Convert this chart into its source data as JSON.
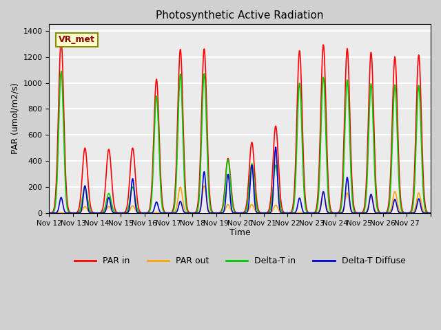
{
  "title": "Photosynthetic Active Radiation",
  "ylabel": "PAR (umol/m2/s)",
  "xlabel": "Time",
  "ylim": [
    0,
    1450
  ],
  "yticks": [
    0,
    200,
    400,
    600,
    800,
    1000,
    1200,
    1400
  ],
  "fig_bg_color": "#d0d0d0",
  "plot_bg_color": "#ebebeb",
  "grid_color": "white",
  "annotation_text": "VR_met",
  "annotation_bg": "#ffffcc",
  "annotation_border": "#8B8B00",
  "line_colors": {
    "PAR_in": "#ff0000",
    "PAR_out": "#ffa500",
    "Delta_T_in": "#00cc00",
    "Delta_T_Diffuse": "#0000cc"
  },
  "legend_labels": [
    "PAR in",
    "PAR out",
    "Delta-T in",
    "Delta-T Diffuse"
  ],
  "xtick_labels": [
    "Nov 12",
    "Nov 13",
    "Nov 14",
    "Nov 15",
    "Nov 16",
    "Nov 17",
    "Nov 18",
    "Nov 19",
    "Nov 20",
    "Nov 21",
    "Nov 22",
    "Nov 23",
    "Nov 24",
    "Nov 25",
    "Nov 26",
    "Nov 27"
  ],
  "n_days": 16,
  "day_peaks": {
    "PAR_in": [
      1330,
      500,
      490,
      500,
      1030,
      1260,
      1265,
      420,
      545,
      670,
      1250,
      1295,
      1265,
      1235,
      1200,
      1215
    ],
    "PAR_out": [
      0,
      50,
      50,
      55,
      0,
      200,
      210,
      65,
      65,
      60,
      0,
      150,
      155,
      130,
      165,
      155
    ],
    "Delta_T_in": [
      1090,
      200,
      150,
      200,
      900,
      1070,
      1075,
      410,
      380,
      370,
      1000,
      1045,
      1025,
      995,
      985,
      980
    ],
    "Delta_T_Diffuse": [
      120,
      210,
      120,
      265,
      85,
      90,
      320,
      300,
      370,
      510,
      115,
      165,
      275,
      145,
      105,
      110
    ]
  }
}
